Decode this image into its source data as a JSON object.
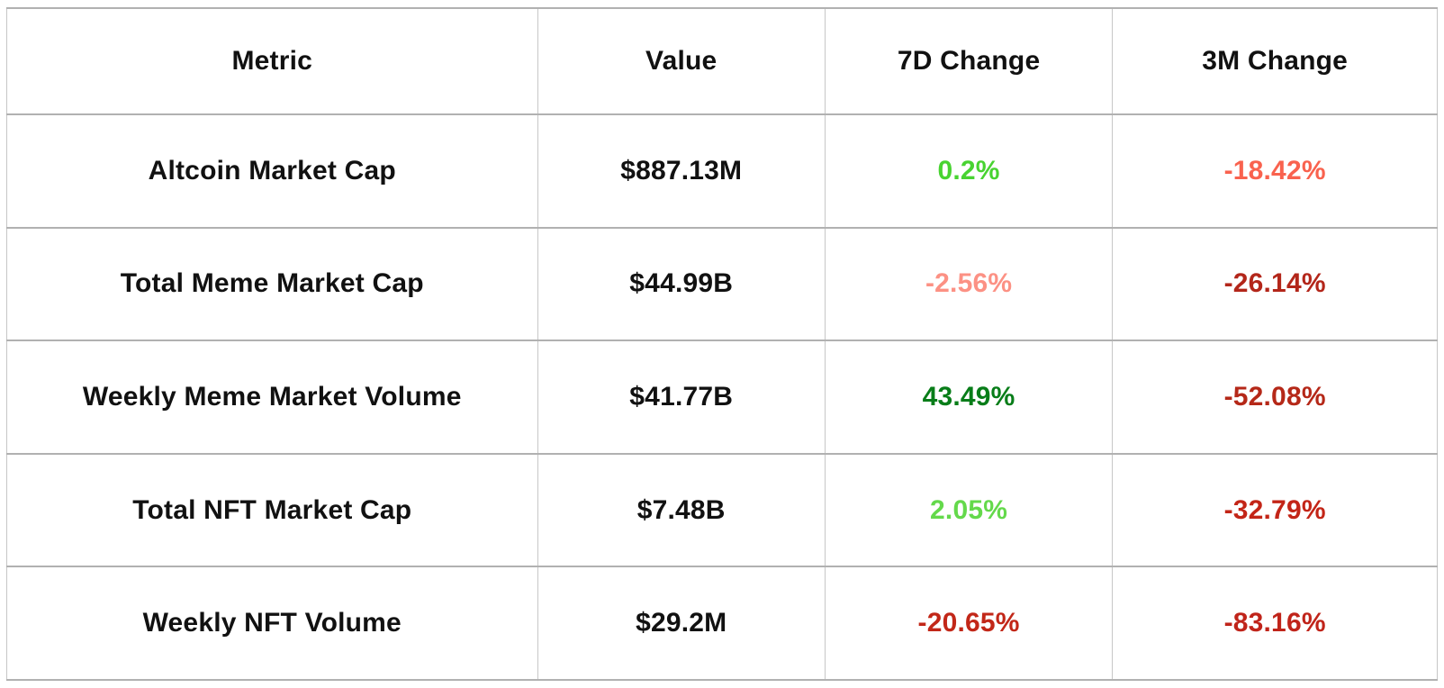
{
  "table": {
    "headers": [
      {
        "label": "Metric"
      },
      {
        "label": "Value"
      },
      {
        "label": "7D Change"
      },
      {
        "label": "3M Change"
      }
    ],
    "rows": [
      {
        "metric": "Altcoin Market Cap",
        "value": "$887.13M",
        "change_7d": {
          "text": "0.2%",
          "color": "#48d331"
        },
        "change_3m": {
          "text": "-18.42%",
          "color": "#f9624e"
        }
      },
      {
        "metric": "Total Meme Market Cap",
        "value": "$44.99B",
        "change_7d": {
          "text": "-2.56%",
          "color": "#fc9184"
        },
        "change_3m": {
          "text": "-26.14%",
          "color": "#b3261a"
        }
      },
      {
        "metric": "Weekly Meme Market Volume",
        "value": "$41.77B",
        "change_7d": {
          "text": "43.49%",
          "color": "#087d19"
        },
        "change_3m": {
          "text": "-52.08%",
          "color": "#b52818"
        }
      },
      {
        "metric": "Total NFT Market Cap",
        "value": "$7.48B",
        "change_7d": {
          "text": "2.05%",
          "color": "#64d94b"
        },
        "change_3m": {
          "text": "-32.79%",
          "color": "#c32517"
        }
      },
      {
        "metric": "Weekly NFT Volume",
        "value": "$29.2M",
        "change_7d": {
          "text": "-20.65%",
          "color": "#c22718"
        },
        "change_3m": {
          "text": "-83.16%",
          "color": "#c0241a"
        }
      }
    ],
    "style": {
      "border_color": "#bdbdbd",
      "header_text_color": "#111111",
      "cell_text_color": "#111111",
      "background": "#ffffff"
    }
  },
  "chart_data": {
    "type": "table",
    "title": "",
    "columns": [
      "Metric",
      "Value",
      "7D Change",
      "3M Change"
    ],
    "rows": [
      [
        "Altcoin Market Cap",
        "$887.13M",
        "0.2%",
        "-18.42%"
      ],
      [
        "Total Meme Market Cap",
        "$44.99B",
        "-2.56%",
        "-26.14%"
      ],
      [
        "Weekly Meme Market Volume",
        "$41.77B",
        "43.49%",
        "-52.08%"
      ],
      [
        "Total NFT Market Cap",
        "$7.48B",
        "2.05%",
        "-32.79%"
      ],
      [
        "Weekly NFT Volume",
        "$29.2M",
        "-20.65%",
        "-83.16%"
      ]
    ],
    "cell_colors_note": "7D/3M change cells are colored by sign and magnitude: greens for positive, reds for negative"
  }
}
